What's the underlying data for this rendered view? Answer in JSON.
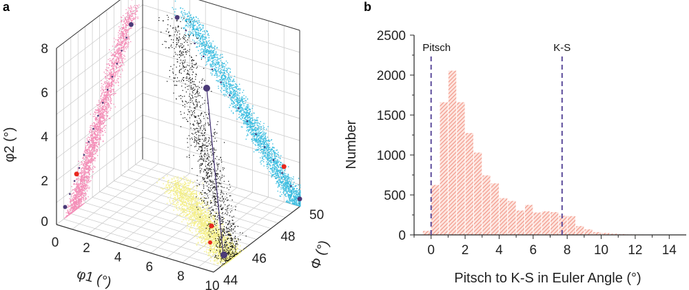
{
  "chart_data": [
    {
      "panel_label": "a",
      "type": "scatter",
      "dimensions": 3,
      "xlabel": "φ1 (°)",
      "ylabel": "Φ (°)",
      "zlabel": "φ2 (°)",
      "x_ticks": [
        "0",
        "2",
        "4",
        "6",
        "8",
        "10"
      ],
      "y_ticks": [
        "44",
        "46",
        "48",
        "50"
      ],
      "z_ticks": [
        "0",
        "2",
        "4",
        "6",
        "8"
      ],
      "xlim": [
        0,
        10
      ],
      "ylim": [
        44,
        50
      ],
      "zlim": [
        0,
        8
      ],
      "grid": true,
      "series_colors": {
        "points_3d": "#000000",
        "projection_phi1": "#f48fb8",
        "projection_Phi": "#3bbde0",
        "projection_phi2": "#f4ef8a",
        "markers": "#4b3a78",
        "highlight": "#e8281e"
      }
    },
    {
      "panel_label": "b",
      "type": "bar",
      "xlabel": "Pitsch to K-S in Euler Angle (°)",
      "ylabel": "Number",
      "xlim": [
        -1,
        15
      ],
      "ylim": [
        0,
        2500
      ],
      "x_ticks": [
        "0",
        "2",
        "4",
        "6",
        "8",
        "10",
        "12",
        "14"
      ],
      "y_ticks": [
        "0",
        "500",
        "1000",
        "1500",
        "2000",
        "2500"
      ],
      "bin_width": 0.5,
      "bin_starts": [
        -0.5,
        0,
        0.5,
        1,
        1.5,
        2,
        2.5,
        3,
        3.5,
        4,
        4.5,
        5,
        5.5,
        6,
        6.5,
        7,
        7.5,
        8,
        8.5,
        9,
        9.5,
        10,
        10.5,
        11,
        11.5,
        12,
        12.5,
        13
      ],
      "values": [
        50,
        625,
        1660,
        2055,
        1660,
        1275,
        1030,
        745,
        645,
        460,
        425,
        305,
        375,
        280,
        295,
        285,
        240,
        235,
        110,
        70,
        35,
        25,
        15,
        10,
        6,
        5,
        4,
        3
      ],
      "bar_color": "#f4a495",
      "reference_lines": [
        {
          "label": "Pitsch",
          "x": 0
        },
        {
          "label": "K-S",
          "x": 7.7
        }
      ],
      "reference_line_color": "#5a4a9a",
      "grid": false
    }
  ]
}
